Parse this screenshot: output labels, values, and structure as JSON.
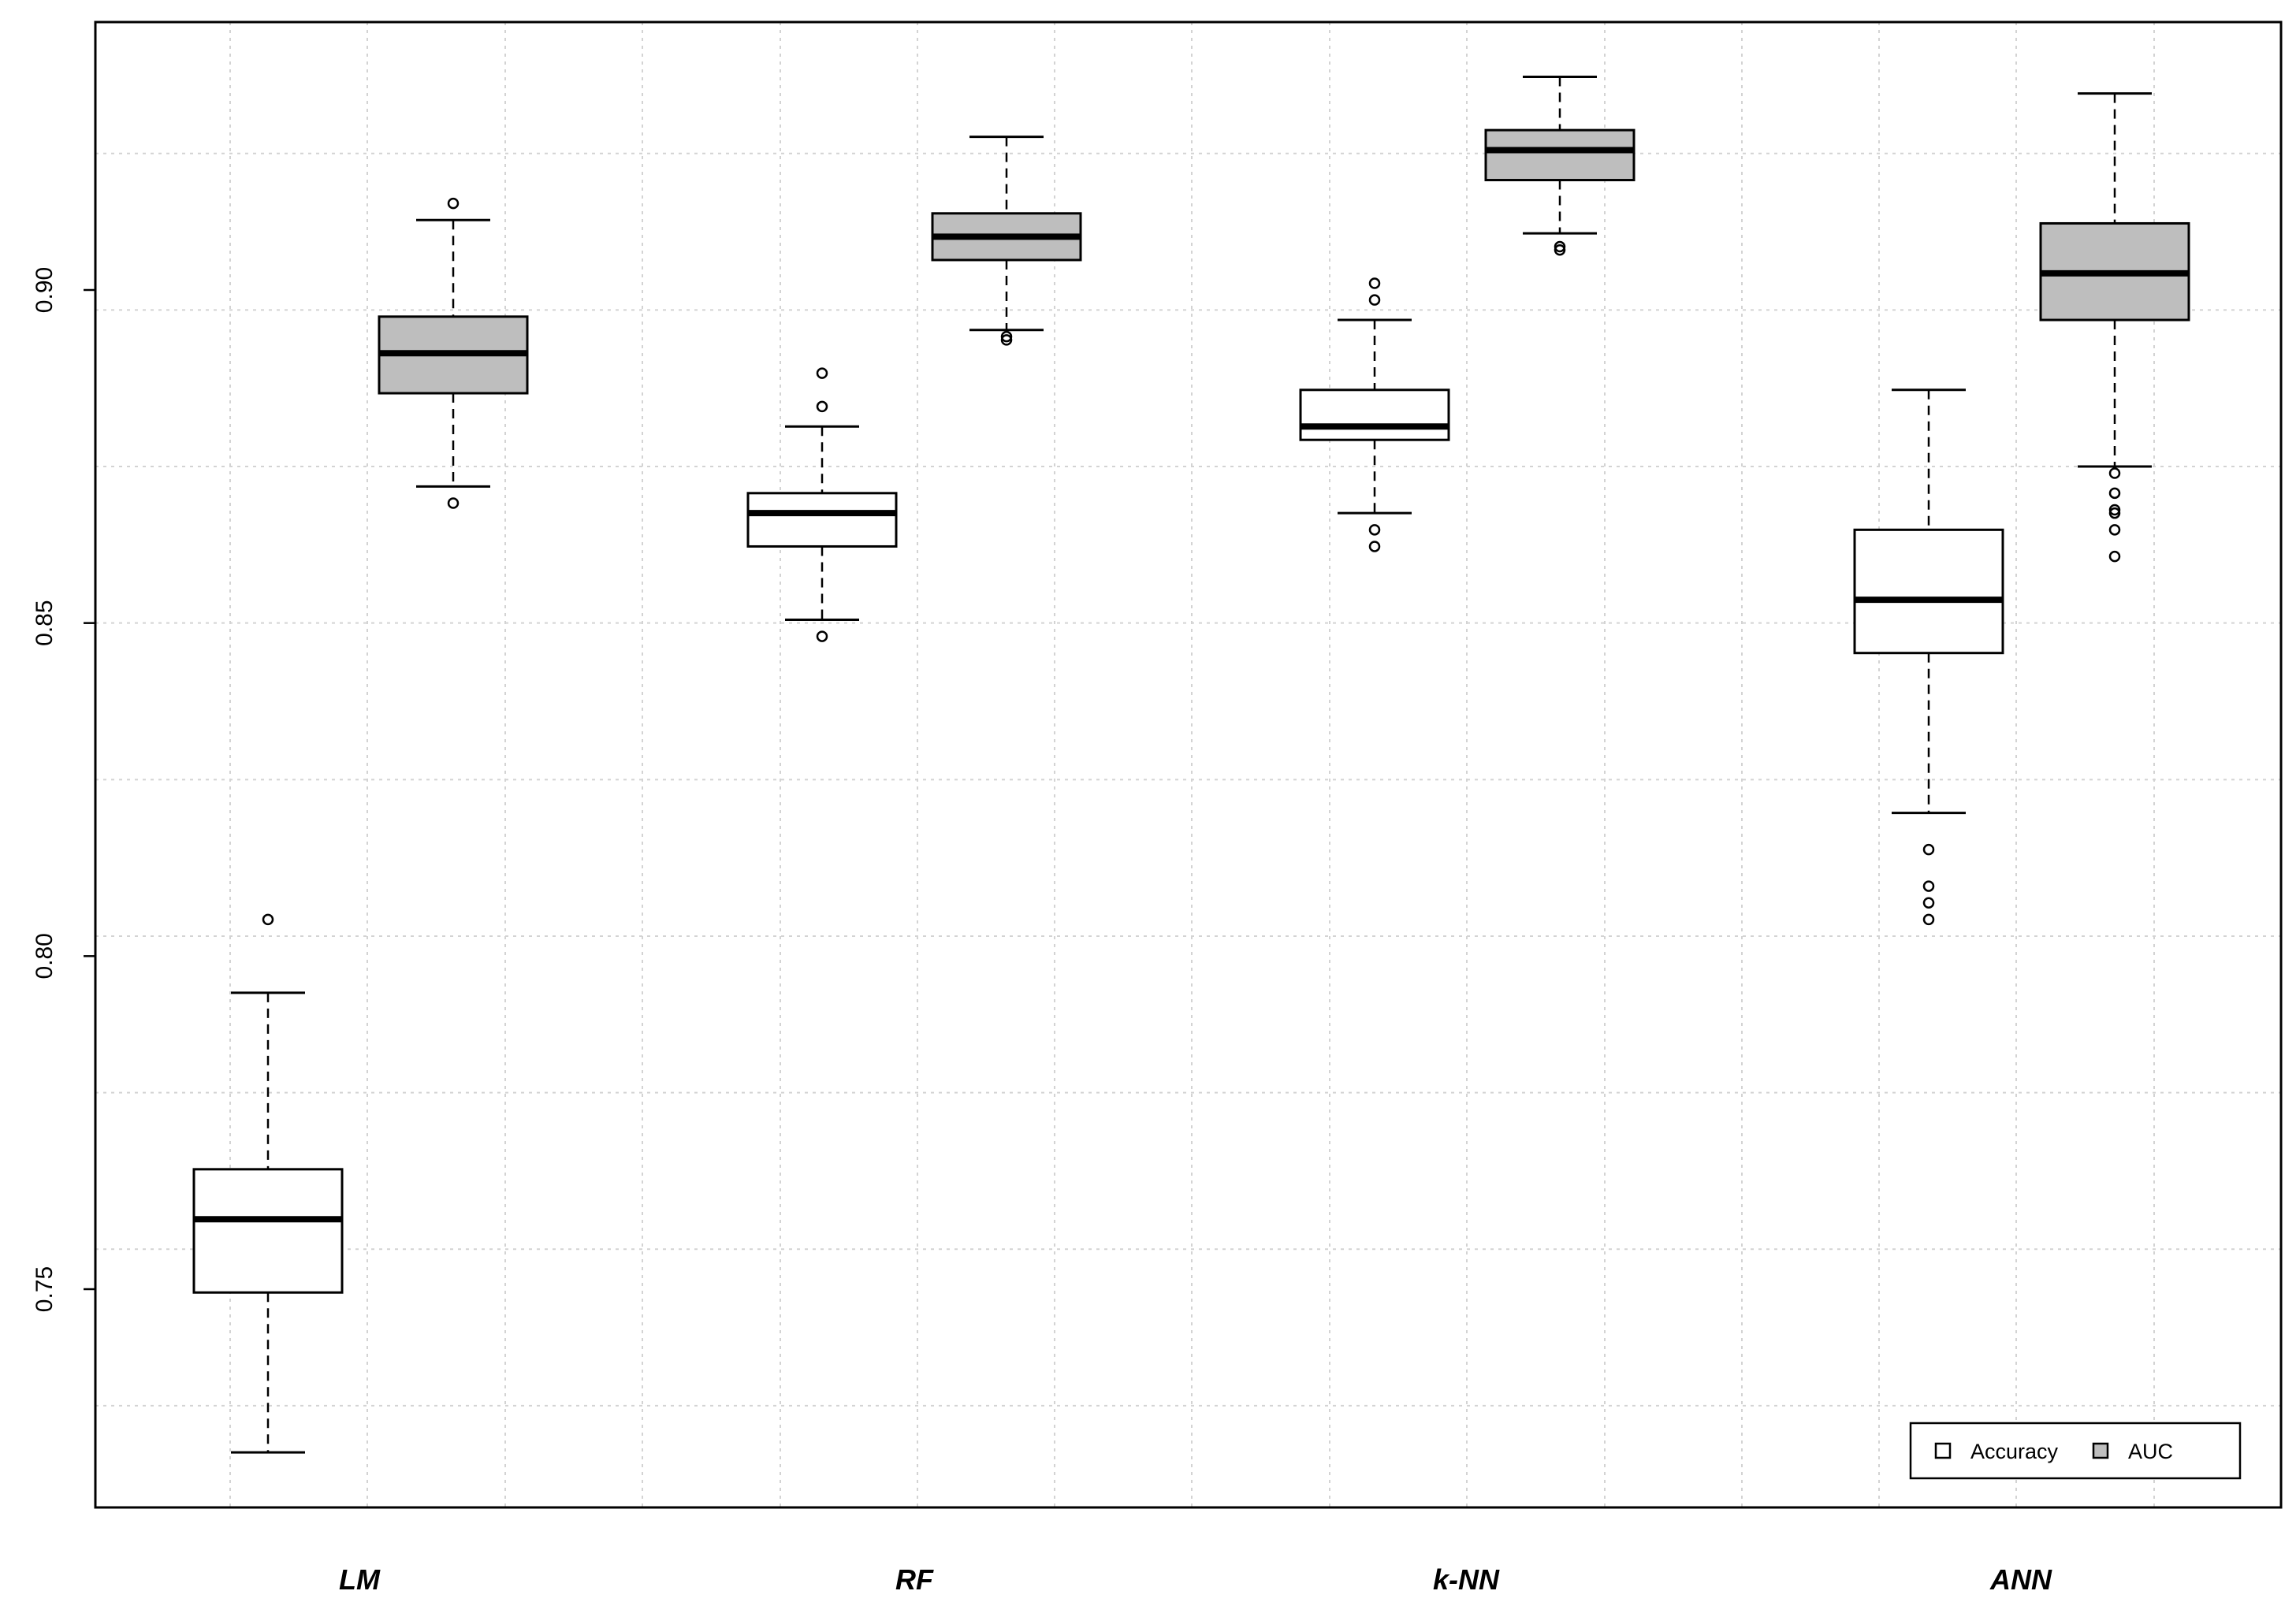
{
  "chart_data": {
    "type": "boxplot",
    "title": "",
    "xlabel": "",
    "ylabel": "",
    "ylim": [
      0.717,
      0.94
    ],
    "grid": true,
    "legend_position": "bottom-right",
    "y_ticks": [
      0.75,
      0.8,
      0.85,
      0.9
    ],
    "y_tick_labels": [
      "0.75",
      "0.80",
      "0.85",
      "0.90"
    ],
    "categories": [
      "LM",
      "RF",
      "k-NN",
      "ANN"
    ],
    "legend": [
      {
        "label": "Accuracy",
        "color": "#ffffff"
      },
      {
        "label": "AUC",
        "color": "#bebebe"
      }
    ],
    "series": [
      {
        "name": "Accuracy",
        "color": "#ffffff",
        "boxes": [
          {
            "category": "LM",
            "whisker_low": 0.7255,
            "q1": 0.7495,
            "median": 0.7605,
            "q3": 0.768,
            "whisker_high": 0.7945,
            "outliers": [
              0.8055
            ]
          },
          {
            "category": "RF",
            "whisker_low": 0.8505,
            "q1": 0.8615,
            "median": 0.8665,
            "q3": 0.8695,
            "whisker_high": 0.8795,
            "outliers": [
              0.848,
              0.8825,
              0.8875
            ]
          },
          {
            "category": "k-NN",
            "whisker_low": 0.8665,
            "q1": 0.8775,
            "median": 0.8795,
            "q3": 0.885,
            "whisker_high": 0.8955,
            "outliers": [
              0.8615,
              0.864,
              0.8985,
              0.901
            ]
          },
          {
            "category": "ANN",
            "whisker_low": 0.8215,
            "q1": 0.8455,
            "median": 0.8535,
            "q3": 0.864,
            "whisker_high": 0.885,
            "outliers": [
              0.8055,
              0.808,
              0.8105,
              0.816
            ]
          }
        ]
      },
      {
        "name": "AUC",
        "color": "#bebebe",
        "boxes": [
          {
            "category": "LM",
            "whisker_low": 0.8705,
            "q1": 0.8845,
            "median": 0.8905,
            "q3": 0.896,
            "whisker_high": 0.9105,
            "outliers": [
              0.868,
              0.913
            ]
          },
          {
            "category": "RF",
            "whisker_low": 0.894,
            "q1": 0.9045,
            "median": 0.908,
            "q3": 0.9115,
            "whisker_high": 0.923,
            "outliers": [
              0.8925,
              0.893
            ]
          },
          {
            "category": "k-NN",
            "whisker_low": 0.9085,
            "q1": 0.9165,
            "median": 0.921,
            "q3": 0.924,
            "whisker_high": 0.932,
            "outliers": [
              0.906,
              0.9065
            ]
          },
          {
            "category": "ANN",
            "whisker_low": 0.8735,
            "q1": 0.8955,
            "median": 0.9025,
            "q3": 0.91,
            "whisker_high": 0.9295,
            "outliers": [
              0.86,
              0.864,
              0.8665,
              0.867,
              0.8695,
              0.8725
            ]
          }
        ]
      }
    ]
  }
}
